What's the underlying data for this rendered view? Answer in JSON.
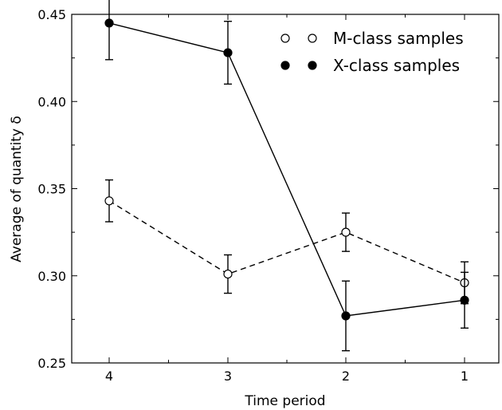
{
  "chart_data": {
    "type": "line",
    "categories": [
      "4",
      "3",
      "2",
      "1"
    ],
    "xlabel": "Time period",
    "ylabel": "Average of quantity δ",
    "ylim": [
      0.25,
      0.45
    ],
    "yticks": [
      "0.25",
      "0.30",
      "0.35",
      "0.40",
      "0.45"
    ],
    "legend_position": "top-right",
    "series": [
      {
        "name": "M-class samples",
        "style": "dashed",
        "marker": "open-circle",
        "color": "#000000",
        "values": [
          0.343,
          0.301,
          0.325,
          0.296
        ],
        "errors": [
          0.012,
          0.011,
          0.011,
          0.012
        ]
      },
      {
        "name": "X-class samples",
        "style": "solid",
        "marker": "filled-circle",
        "color": "#000000",
        "values": [
          0.445,
          0.428,
          0.277,
          0.286
        ],
        "errors": [
          0.021,
          0.018,
          0.02,
          0.016
        ]
      }
    ]
  }
}
